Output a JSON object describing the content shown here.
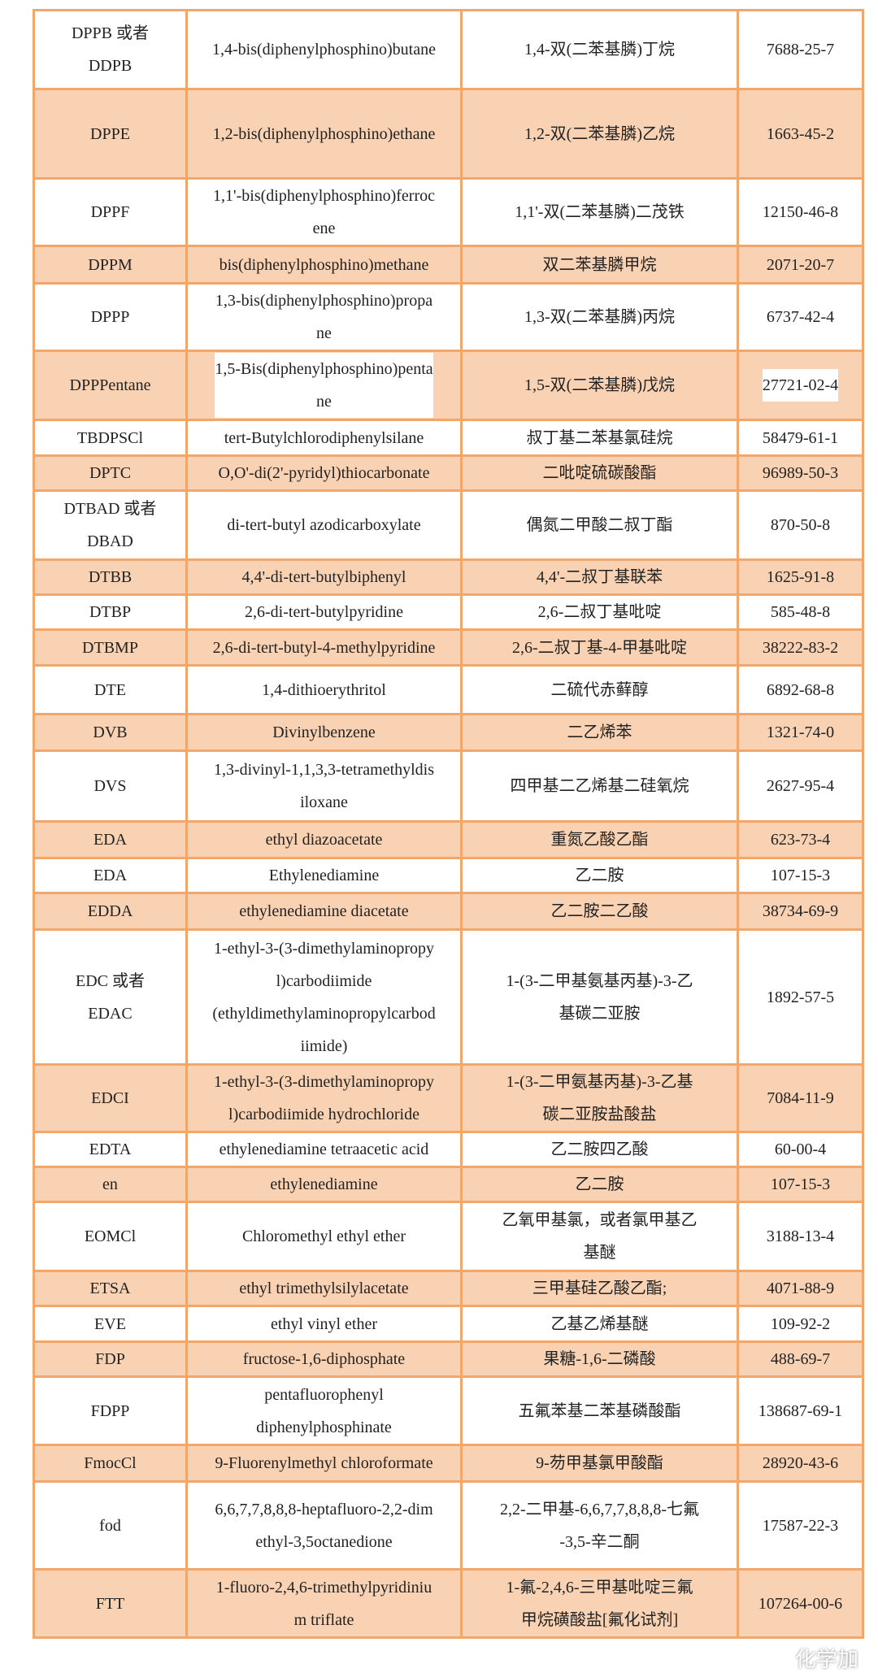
{
  "colors": {
    "odd_row": "#f9d2b3",
    "even_row": "#ffffff",
    "border": "#f2a66a"
  },
  "rows": [
    {
      "abbr": "DPPB 或者\nDDPB",
      "english": "1,4-bis(diphenylphosphino)butane",
      "chinese": "1,4-双(二苯基膦)丁烷",
      "cas": "7688-25-7"
    },
    {
      "abbr": "DPPE",
      "english": "1,2-bis(diphenylphosphino)ethane",
      "chinese": "1,2-双(二苯基膦)乙烷",
      "cas": "1663-45-2"
    },
    {
      "abbr": "DPPF",
      "english": "1,1'-bis(diphenylphosphino)ferroc\nene",
      "chinese": "1,1'-双(二苯基膦)二茂铁",
      "cas": "12150-46-8"
    },
    {
      "abbr": "DPPM",
      "english": "bis(diphenylphosphino)methane",
      "chinese": "双二苯基膦甲烷",
      "cas": "2071-20-7"
    },
    {
      "abbr": "DPPP",
      "english": "1,3-bis(diphenylphosphino)propa\nne",
      "chinese": "1,3-双(二苯基膦)丙烷",
      "cas": "6737-42-4"
    },
    {
      "abbr": "DPPPentane",
      "english": "1,5-Bis(diphenylphosphino)penta\nne",
      "chinese": "1,5-双(二苯基膦)戊烷",
      "cas": "27721-02-4",
      "highlight": true
    },
    {
      "abbr": "TBDPSCl",
      "english": "tert-Butylchlorodiphenylsilane",
      "chinese": "叔丁基二苯基氯硅烷",
      "cas": "58479-61-1"
    },
    {
      "abbr": "DPTC",
      "english": "O,O'-di(2'-pyridyl)thiocarbonate",
      "chinese": "二吡啶硫碳酸酯",
      "cas": "96989-50-3"
    },
    {
      "abbr": "DTBAD 或者\nDBAD",
      "english": "di-tert-butyl azodicarboxylate",
      "chinese": "偶氮二甲酸二叔丁酯",
      "cas": "870-50-8"
    },
    {
      "abbr": "DTBB",
      "english": "4,4'-di-tert-butylbiphenyl",
      "chinese": "4,4'-二叔丁基联苯",
      "cas": "1625-91-8"
    },
    {
      "abbr": "DTBP",
      "english": "2,6-di-tert-butylpyridine",
      "chinese": "2,6-二叔丁基吡啶",
      "cas": "585-48-8"
    },
    {
      "abbr": "DTBMP",
      "english": "2,6-di-tert-butyl-4-methylpyridine",
      "chinese": "2,6-二叔丁基-4-甲基吡啶",
      "cas": "38222-83-2"
    },
    {
      "abbr": "DTE",
      "english": "1,4-dithioerythritol",
      "chinese": "二硫代赤藓醇",
      "cas": "6892-68-8"
    },
    {
      "abbr": "DVB",
      "english": "Divinylbenzene",
      "chinese": "二乙烯苯",
      "cas": "1321-74-0"
    },
    {
      "abbr": "DVS",
      "english": "1,3-divinyl-1,1,3,3-tetramethyldis\niloxane",
      "chinese": "四甲基二乙烯基二硅氧烷",
      "cas": "2627-95-4"
    },
    {
      "abbr": "EDA",
      "english": "ethyl diazoacetate",
      "chinese": "重氮乙酸乙酯",
      "cas": "623-73-4"
    },
    {
      "abbr": "EDA",
      "english": "Ethylenediamine",
      "chinese": "乙二胺",
      "cas": "107-15-3"
    },
    {
      "abbr": "EDDA",
      "english": "ethylenediamine diacetate",
      "chinese": "乙二胺二乙酸",
      "cas": "38734-69-9"
    },
    {
      "abbr": "EDC 或者\nEDAC",
      "english": "1-ethyl-3-(3-dimethylaminopropy\nl)carbodiimide\n(ethyldimethylaminopropylcarbod\niimide)",
      "chinese": "1-(3-二甲基氨基丙基)-3-乙\n基碳二亚胺",
      "cas": "1892-57-5"
    },
    {
      "abbr": "EDCI",
      "english": "1-ethyl-3-(3-dimethylaminopropy\nl)carbodiimide hydrochloride",
      "chinese": "1-(3-二甲氨基丙基)-3-乙基\n碳二亚胺盐酸盐",
      "cas": "7084-11-9"
    },
    {
      "abbr": "EDTA",
      "english": "ethylenediamine tetraacetic acid",
      "chinese": "乙二胺四乙酸",
      "cas": "60-00-4"
    },
    {
      "abbr": "en",
      "english": "ethylenediamine",
      "chinese": "乙二胺",
      "cas": "107-15-3"
    },
    {
      "abbr": "EOMCl",
      "english": "Chloromethyl ethyl ether",
      "chinese": "乙氧甲基氯，或者氯甲基乙\n基醚",
      "cas": "3188-13-4"
    },
    {
      "abbr": "ETSA",
      "english": "ethyl trimethylsilylacetate",
      "chinese": "三甲基硅乙酸乙酯;",
      "cas": "4071-88-9"
    },
    {
      "abbr": "EVE",
      "english": "ethyl vinyl ether",
      "chinese": "乙基乙烯基醚",
      "cas": "109-92-2"
    },
    {
      "abbr": "FDP",
      "english": "fructose-1,6-diphosphate",
      "chinese": "果糖-1,6-二磷酸",
      "cas": "488-69-7"
    },
    {
      "abbr": "FDPP",
      "english": "pentafluorophenyl\ndiphenylphosphinate",
      "chinese": "五氟苯基二苯基磷酸酯",
      "cas": "138687-69-1"
    },
    {
      "abbr": "FmocCl",
      "english": "9-Fluorenylmethyl chloroformate",
      "chinese": "9-芴甲基氯甲酸酯",
      "cas": "28920-43-6"
    },
    {
      "abbr": "fod",
      "english": "6,6,7,7,8,8,8-heptafluoro-2,2-dim\nethyl-3,5octanedione",
      "chinese": "2,2-二甲基-6,6,7,7,8,8,8-七氟\n-3,5-辛二酮",
      "cas": "17587-22-3"
    },
    {
      "abbr": "FTT",
      "english": "1-fluoro-2,4,6-trimethylpyridiniu\nm triflate",
      "chinese": "1-氟-2,4,6-三甲基吡啶三氟\n甲烷磺酸盐[氟化试剂]",
      "cas": "107264-00-6"
    }
  ],
  "watermark": {
    "text": "化学加",
    "icon": "wechat-icon"
  }
}
